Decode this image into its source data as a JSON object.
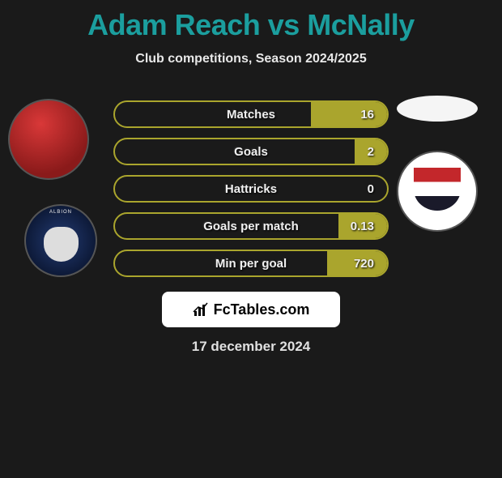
{
  "title": "Adam Reach vs McNally",
  "title_color": "#1b9e9e",
  "subtitle": "Club competitions, Season 2024/2025",
  "date": "17 december 2024",
  "branding": "FcTables.com",
  "background_color": "#1a1a1a",
  "pill_border_color": "#aaa52d",
  "pill_fill_color": "#aaa52d",
  "stats": [
    {
      "label": "Matches",
      "right_value": "16",
      "right_fill_pct": 28
    },
    {
      "label": "Goals",
      "right_value": "2",
      "right_fill_pct": 12
    },
    {
      "label": "Hattricks",
      "right_value": "0",
      "right_fill_pct": 0
    },
    {
      "label": "Goals per match",
      "right_value": "0.13",
      "right_fill_pct": 18
    },
    {
      "label": "Min per goal",
      "right_value": "720",
      "right_fill_pct": 22
    }
  ],
  "players": {
    "left": {
      "player": "Adam Reach",
      "club_badge": "West Bromwich Albion"
    },
    "right": {
      "player": "McNally",
      "club_badge": "Bristol City"
    }
  }
}
